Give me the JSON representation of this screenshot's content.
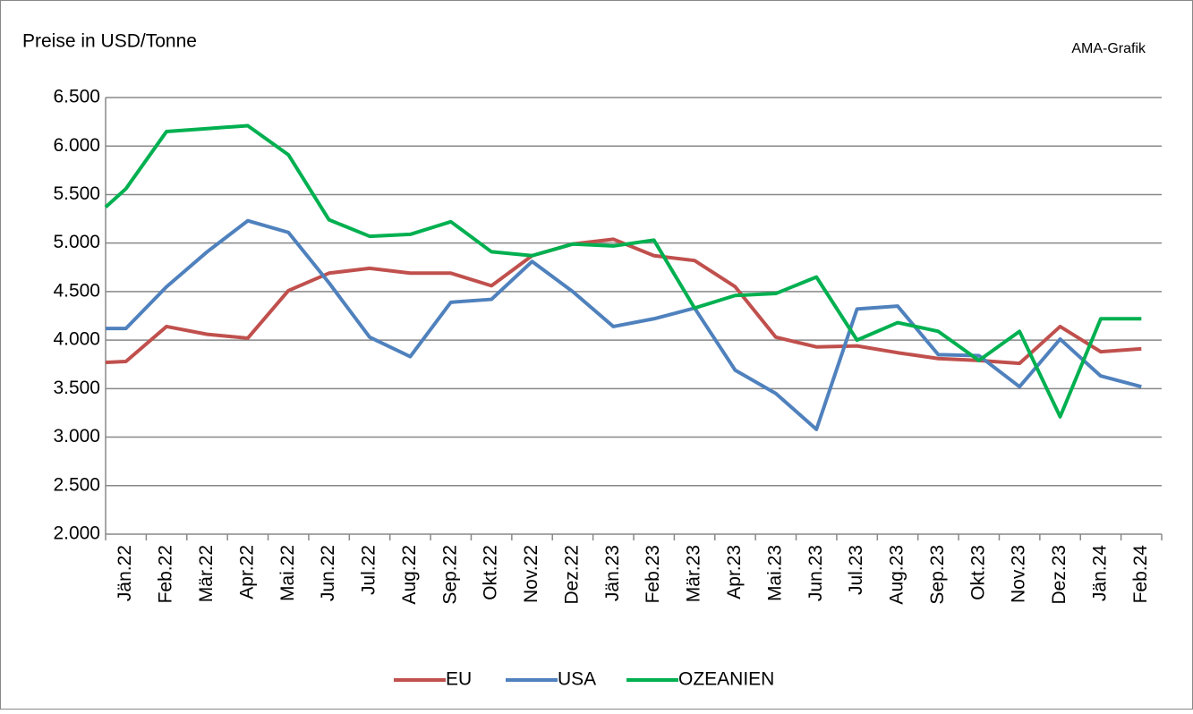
{
  "chart_data": {
    "type": "line",
    "title": "Preise in USD/Tonne",
    "source": "AMA-Grafik",
    "categories": [
      null,
      "Jän.22",
      "Feb.22",
      "Mär.22",
      "Apr.22",
      "Mai.22",
      "Jun.22",
      "Jul.22",
      "Aug.22",
      "Sep.22",
      "Okt.22",
      "Nov.22",
      "Dez.22",
      "Jän.23",
      "Feb.23",
      "Mär.23",
      "Apr.23",
      "Mai.23",
      "Jun.23",
      "Jul.23",
      "Aug.23",
      "Sep.23",
      "Okt.23",
      "Nov.23",
      "Dez.23",
      "Jän.24",
      "Feb.24"
    ],
    "series": [
      {
        "name": "EU",
        "color": "#c0504d",
        "values": [
          3770,
          3780,
          4140,
          4060,
          4020,
          4510,
          4690,
          4740,
          4690,
          4690,
          4560,
          4870,
          4990,
          5040,
          4870,
          4820,
          4550,
          4030,
          3930,
          3940,
          3870,
          3810,
          3790,
          3760,
          4140,
          3880,
          3910
        ]
      },
      {
        "name": "USA",
        "color": "#4f81bd",
        "values": [
          4120,
          4120,
          4550,
          4910,
          5230,
          5110,
          4590,
          4030,
          3830,
          4390,
          4420,
          4810,
          4500,
          4140,
          4220,
          4330,
          3690,
          3450,
          3080,
          4320,
          4350,
          3850,
          3840,
          3520,
          4010,
          3630,
          3520
        ]
      },
      {
        "name": "OZEANIEN",
        "color": "#00b050",
        "values": [
          5370,
          5560,
          6150,
          6180,
          6210,
          5910,
          5240,
          5070,
          5090,
          5220,
          4910,
          4870,
          4990,
          4970,
          5030,
          4330,
          4460,
          4480,
          4650,
          4000,
          4180,
          4090,
          3790,
          4090,
          3210,
          4220,
          4220
        ]
      }
    ],
    "ylim": [
      2000,
      6500
    ],
    "yticks": [
      {
        "value": 2000,
        "label": "2.000"
      },
      {
        "value": 2500,
        "label": "2.500"
      },
      {
        "value": 3000,
        "label": "3.000"
      },
      {
        "value": 3500,
        "label": "3.500"
      },
      {
        "value": 4000,
        "label": "4.000"
      },
      {
        "value": 4500,
        "label": "4.500"
      },
      {
        "value": 5000,
        "label": "5.000"
      },
      {
        "value": 5500,
        "label": "5.500"
      },
      {
        "value": 6000,
        "label": "6.000"
      },
      {
        "value": 6500,
        "label": "6.500"
      }
    ],
    "grid": true,
    "legend": "bottom"
  }
}
